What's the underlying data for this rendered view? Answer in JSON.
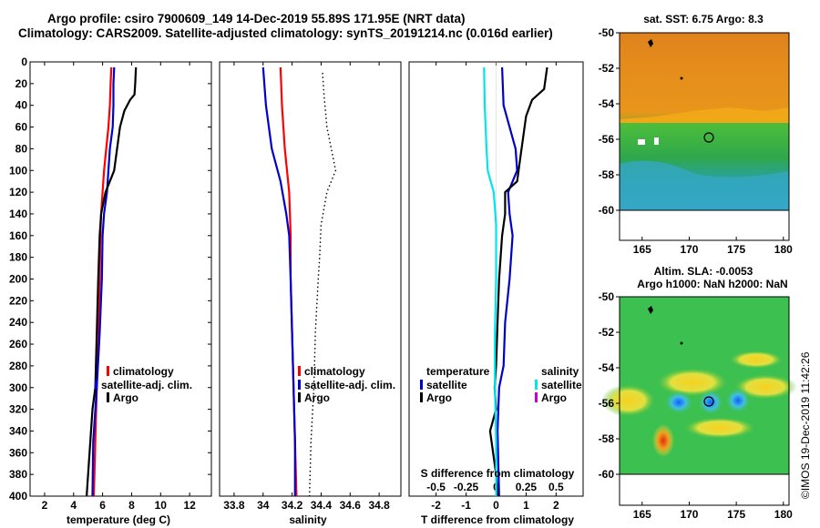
{
  "header": {
    "line1": "Argo profile: csiro 7900609_149 14-Dec-2019 55.89S 171.95E (NRT data)",
    "line2": "Climatology: CARS2009. Satellite-adjusted climatology: synTS_20191214.nc (0.016d earlier)"
  },
  "map_sst": {
    "title": "sat. SST: 6.75 Argo: 8.3",
    "lat_ticks": [
      "-50",
      "-52",
      "-54",
      "-56",
      "-58",
      "-60"
    ],
    "lon_ticks": [
      "165",
      "170",
      "175",
      "180"
    ]
  },
  "map_sla": {
    "title1": "Altim. SLA: -0.0053",
    "title2": "Argo h1000: NaN h2000: NaN",
    "lat_ticks": [
      "-50",
      "-52",
      "-54",
      "-56",
      "-58",
      "-60"
    ],
    "lon_ticks": [
      "165",
      "170",
      "175",
      "180"
    ]
  },
  "watermark": "©IMOS 19-Dec-2019 11:42:26",
  "colors": {
    "climatology": "#ff0000",
    "satellite": "#0000cc",
    "argo": "#000000",
    "sat_diff_s": "#00e5ee",
    "argo_diff_s": "#cc00cc"
  },
  "chart_data": [
    {
      "type": "line",
      "xlabel": "temperature (deg C)",
      "ylabel": "",
      "xlim": [
        1,
        13.5
      ],
      "ylim": [
        400,
        0
      ],
      "xticks": [
        2,
        4,
        6,
        8,
        10,
        12
      ],
      "yticks": [
        0,
        20,
        40,
        60,
        80,
        100,
        120,
        140,
        160,
        180,
        200,
        220,
        240,
        260,
        280,
        300,
        320,
        340,
        360,
        380,
        400
      ],
      "legend": [
        "climatology",
        "satellite-adj. clim.",
        "Argo"
      ],
      "series": [
        {
          "name": "climatology",
          "depth": [
            5,
            20,
            40,
            60,
            80,
            100,
            120,
            140,
            160,
            200,
            250,
            300,
            350,
            400
          ],
          "values": [
            6.6,
            6.55,
            6.5,
            6.4,
            6.25,
            6.1,
            6.0,
            5.9,
            5.85,
            5.8,
            5.7,
            5.6,
            5.5,
            5.4
          ]
        },
        {
          "name": "satellite-adj. clim.",
          "depth": [
            5,
            20,
            40,
            60,
            80,
            100,
            120,
            140,
            160,
            200,
            250,
            300,
            350,
            400
          ],
          "values": [
            6.8,
            6.75,
            6.75,
            6.7,
            6.5,
            6.4,
            6.3,
            6.1,
            6.0,
            5.95,
            5.8,
            5.6,
            5.35,
            5.3
          ]
        },
        {
          "name": "Argo",
          "depth": [
            5,
            20,
            30,
            35,
            45,
            60,
            80,
            100,
            110,
            120,
            140,
            160,
            200,
            250,
            300,
            320,
            340,
            360,
            380,
            400
          ],
          "values": [
            8.3,
            8.25,
            8.2,
            7.9,
            7.5,
            7.2,
            7.0,
            6.8,
            6.5,
            6.2,
            5.9,
            5.8,
            5.7,
            5.6,
            5.5,
            5.3,
            5.2,
            5.1,
            5.0,
            4.9
          ]
        }
      ]
    },
    {
      "type": "line",
      "xlabel": "salinity",
      "xlim": [
        33.7,
        34.95
      ],
      "ylim": [
        400,
        0
      ],
      "xticks": [
        33.8,
        34,
        34.2,
        34.4,
        34.6,
        34.8
      ],
      "xticklabels": [
        "33.8",
        "34",
        "34.2",
        "34.4",
        "34.6",
        "34.8"
      ],
      "legend": [
        "climatology",
        "satellite-adj. clim.",
        "Argo"
      ],
      "series": [
        {
          "name": "climatology",
          "depth": [
            5,
            40,
            80,
            120,
            160,
            200,
            250,
            300,
            350,
            400
          ],
          "values": [
            34.12,
            34.13,
            34.15,
            34.18,
            34.19,
            34.19,
            34.2,
            34.21,
            34.22,
            34.23
          ]
        },
        {
          "name": "satellite-adj. clim.",
          "depth": [
            5,
            40,
            80,
            110,
            140,
            160,
            200,
            250,
            300,
            350,
            400
          ],
          "values": [
            34.0,
            34.02,
            34.06,
            34.12,
            34.16,
            34.18,
            34.19,
            34.2,
            34.21,
            34.22,
            34.22
          ]
        },
        {
          "name": "Argo",
          "depth": [
            10,
            30,
            60,
            80,
            100,
            120,
            150,
            180,
            200,
            250,
            300,
            350,
            400
          ],
          "values": [
            34.41,
            34.42,
            34.44,
            34.47,
            34.5,
            34.44,
            34.4,
            34.39,
            34.38,
            34.36,
            34.35,
            34.33,
            34.32
          ]
        }
      ]
    },
    {
      "type": "line",
      "xlabel": "T difference from climatology",
      "xlabel_top": "S difference from climatology",
      "xlim": [
        -2.9,
        2.9
      ],
      "ylim": [
        400,
        0
      ],
      "xticks": [
        -2,
        -1,
        0,
        1,
        2
      ],
      "xticks_top": [
        "-0.5",
        "-0.25",
        "0",
        "0.25",
        "0.5"
      ],
      "legend_left_title": "temperature",
      "legend_right_title": "salinity",
      "legend": [
        "satellite",
        "Argo"
      ],
      "series": [
        {
          "name": "T satellite",
          "depth": [
            5,
            40,
            80,
            100,
            120,
            140,
            160,
            200,
            240,
            280,
            300,
            340,
            400
          ],
          "values": [
            0.2,
            0.25,
            0.65,
            0.7,
            0.4,
            0.45,
            0.55,
            0.45,
            0.3,
            0.25,
            0.1,
            0.05,
            0.1
          ]
        },
        {
          "name": "T Argo",
          "depth": [
            5,
            25,
            35,
            50,
            70,
            90,
            110,
            120,
            140,
            160,
            200,
            240,
            280,
            300,
            320,
            340,
            360,
            380,
            400
          ],
          "values": [
            1.7,
            1.6,
            1.2,
            1.0,
            0.9,
            0.8,
            0.7,
            0.3,
            0.3,
            0.2,
            0.1,
            0.05,
            0.0,
            -0.05,
            0.0,
            -0.2,
            -0.1,
            0.0,
            0.05
          ]
        },
        {
          "name": "S satellite",
          "depth": [
            5,
            40,
            80,
            100,
            120,
            150,
            200,
            250,
            300,
            350,
            400
          ],
          "values": [
            -0.1,
            -0.095,
            -0.08,
            -0.07,
            -0.02,
            0,
            0,
            -0.01,
            -0.01,
            0,
            0
          ]
        }
      ]
    }
  ]
}
